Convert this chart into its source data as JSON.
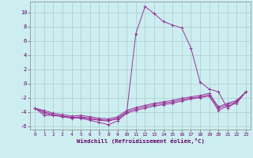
{
  "xlabel": "Windchill (Refroidissement éolien,°C)",
  "background_color": "#cceef0",
  "grid_color": "#aacccc",
  "line_color": "#993399",
  "xlim": [
    -0.5,
    23.5
  ],
  "ylim": [
    -6.5,
    11.5
  ],
  "xticks": [
    0,
    1,
    2,
    3,
    4,
    5,
    6,
    7,
    8,
    9,
    10,
    11,
    12,
    13,
    14,
    15,
    16,
    17,
    18,
    19,
    20,
    21,
    22,
    23
  ],
  "yticks": [
    -6,
    -4,
    -2,
    0,
    2,
    4,
    6,
    8,
    10
  ],
  "curves": [
    {
      "x": [
        0,
        1,
        2,
        3,
        4,
        5,
        6,
        7,
        8,
        9,
        10,
        11,
        12,
        13,
        14,
        15,
        16,
        17,
        18,
        19,
        20,
        21,
        22,
        23
      ],
      "y": [
        -3.5,
        -4.5,
        -4.5,
        -4.6,
        -4.8,
        -4.9,
        -5.2,
        -5.5,
        -5.8,
        -5.3,
        -4.2,
        7.0,
        10.8,
        9.8,
        8.7,
        8.2,
        7.8,
        5.0,
        0.2,
        -0.8,
        -1.2,
        -3.5,
        -2.5,
        -1.2
      ]
    },
    {
      "x": [
        0,
        1,
        2,
        3,
        4,
        5,
        6,
        7,
        8,
        9,
        10,
        11,
        12,
        13,
        14,
        15,
        16,
        17,
        18,
        19,
        20,
        21,
        22,
        23
      ],
      "y": [
        -3.5,
        -4.2,
        -4.5,
        -4.7,
        -4.9,
        -4.8,
        -5.0,
        -5.2,
        -5.3,
        -5.0,
        -4.2,
        -3.8,
        -3.5,
        -3.2,
        -3.0,
        -2.8,
        -2.5,
        -2.2,
        -2.0,
        -1.8,
        -3.8,
        -3.2,
        -2.8,
        -1.2
      ]
    },
    {
      "x": [
        0,
        1,
        2,
        3,
        4,
        5,
        6,
        7,
        8,
        9,
        10,
        11,
        12,
        13,
        14,
        15,
        16,
        17,
        18,
        19,
        20,
        21,
        22,
        23
      ],
      "y": [
        -3.5,
        -4.0,
        -4.4,
        -4.6,
        -4.8,
        -4.7,
        -4.9,
        -5.1,
        -5.2,
        -4.9,
        -4.0,
        -3.6,
        -3.3,
        -3.0,
        -2.8,
        -2.6,
        -2.3,
        -2.1,
        -1.9,
        -1.6,
        -3.5,
        -3.0,
        -2.6,
        -1.2
      ]
    },
    {
      "x": [
        0,
        1,
        2,
        3,
        4,
        5,
        6,
        7,
        8,
        9,
        10,
        11,
        12,
        13,
        14,
        15,
        16,
        17,
        18,
        19,
        20,
        21,
        22,
        23
      ],
      "y": [
        -3.5,
        -3.8,
        -4.2,
        -4.4,
        -4.6,
        -4.5,
        -4.7,
        -4.9,
        -5.0,
        -4.7,
        -3.8,
        -3.4,
        -3.1,
        -2.8,
        -2.6,
        -2.4,
        -2.1,
        -1.9,
        -1.7,
        -1.4,
        -3.3,
        -2.8,
        -2.4,
        -1.2
      ]
    }
  ]
}
